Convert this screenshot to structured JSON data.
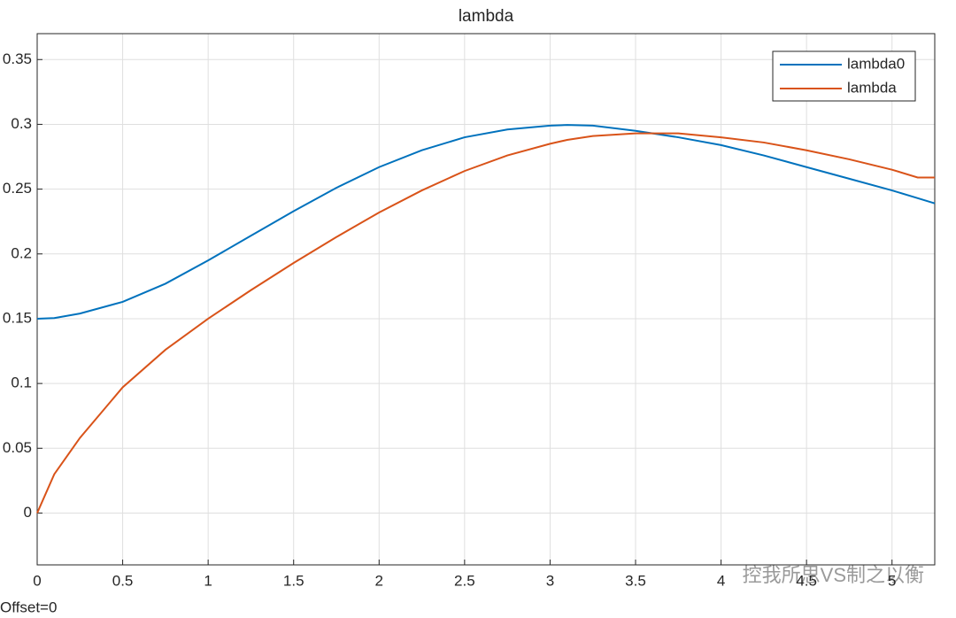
{
  "chart_data": {
    "type": "line",
    "title": "lambda",
    "x": [
      0,
      0.1,
      0.25,
      0.5,
      0.75,
      1,
      1.25,
      1.5,
      1.75,
      2,
      2.25,
      2.5,
      2.75,
      3,
      3.1,
      3.25,
      3.5,
      3.75,
      4,
      4.25,
      4.5,
      4.75,
      5,
      5.15,
      5.25
    ],
    "series": [
      {
        "name": "lambda0",
        "color": "#0072bd",
        "values": [
          0.15,
          0.1505,
          0.154,
          0.163,
          0.177,
          0.195,
          0.214,
          0.233,
          0.251,
          0.267,
          0.28,
          0.29,
          0.296,
          0.299,
          0.2995,
          0.299,
          0.295,
          0.29,
          0.284,
          0.276,
          0.267,
          0.258,
          0.249,
          0.243,
          0.239
        ]
      },
      {
        "name": "lambda",
        "color": "#d95319",
        "values": [
          0,
          0.03,
          0.058,
          0.097,
          0.126,
          0.15,
          0.172,
          0.193,
          0.213,
          0.232,
          0.249,
          0.264,
          0.276,
          0.285,
          0.288,
          0.291,
          0.293,
          0.293,
          0.29,
          0.286,
          0.28,
          0.273,
          0.265,
          0.259,
          0.259
        ]
      }
    ],
    "xlim": [
      0,
      5.25
    ],
    "ylim": [
      -0.04,
      0.37
    ],
    "xticks": [
      0,
      0.5,
      1,
      1.5,
      2,
      2.5,
      3,
      3.5,
      4,
      4.5,
      5
    ],
    "yticks": [
      0,
      0.05,
      0.1,
      0.15,
      0.2,
      0.25,
      0.3,
      0.35
    ],
    "grid": true,
    "legend": "upper right",
    "annotations": [
      "Offset=0",
      "控我所思VS制之以衡"
    ]
  }
}
